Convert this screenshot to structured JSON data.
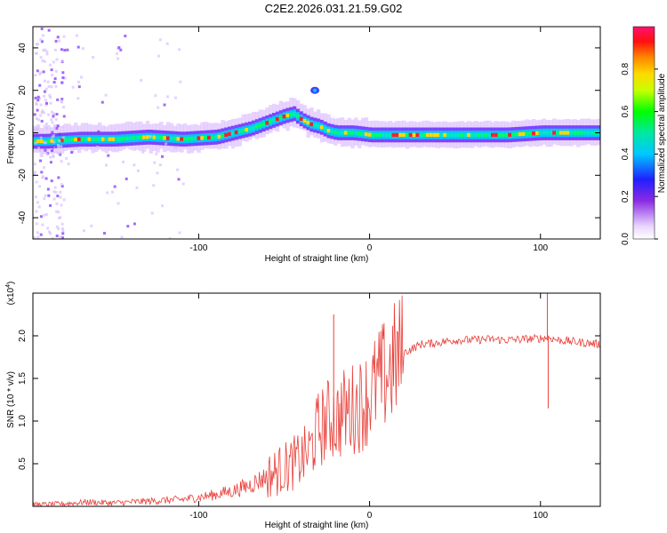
{
  "title": "C2E2.2026.031.21.59.G02",
  "colors": {
    "snr_line": "#e8403a",
    "axis": "#000000",
    "background": "#ffffff"
  },
  "chart_data": [
    {
      "type": "heatmap",
      "xlabel": "Height of straight line (km)",
      "ylabel": "Frequency (Hz)",
      "xlim": [
        -197,
        135
      ],
      "ylim": [
        -50,
        50
      ],
      "x_ticks": [
        -100,
        0,
        100
      ],
      "y_ticks": [
        -40,
        -20,
        0,
        20,
        40
      ],
      "x_tick_labels": [
        "-100",
        "0",
        "100"
      ],
      "y_tick_labels": [
        "-40",
        "-20",
        "0",
        "20",
        "40"
      ],
      "colorbar": {
        "label": "Normalized spectral amplitude",
        "range": [
          0,
          1
        ],
        "ticks": [
          0.0,
          0.2,
          0.4,
          0.6,
          0.8
        ],
        "tick_labels": [
          "0.0",
          "0.2",
          "0.4",
          "0.6",
          "0.8"
        ]
      },
      "trace_ridge": {
        "x": [
          -190,
          -170,
          -150,
          -130,
          -110,
          -90,
          -80,
          -70,
          -60,
          -50,
          -45,
          -40,
          -35,
          -30,
          -25,
          -20,
          -10,
          0,
          10,
          20,
          40,
          60,
          80,
          100,
          135
        ],
        "y": [
          -4,
          -3,
          -3,
          -2,
          -3,
          -2,
          0,
          2,
          5,
          8,
          9,
          6,
          4,
          3,
          1,
          0,
          0,
          -1,
          -1,
          -1,
          -1,
          -1,
          -1,
          0,
          0
        ]
      }
    },
    {
      "type": "line",
      "xlabel": "Height of straight line (km)",
      "ylabel": "SNR (10 * v/v)",
      "y_multiplier": "(x10",
      "y_multiplier_exp": "4",
      "y_multiplier_close": ")",
      "xlim": [
        -197,
        135
      ],
      "ylim": [
        0,
        2.5
      ],
      "x_ticks": [
        -100,
        0,
        100
      ],
      "y_ticks": [
        0.5,
        1.0,
        1.5,
        2.0
      ],
      "x_tick_labels": [
        "-100",
        "0",
        "100"
      ],
      "y_tick_labels": [
        "0.5",
        "1.0",
        "1.5",
        "2.0"
      ],
      "series": [
        {
          "name": "SNR",
          "x": [
            -197,
            -180,
            -165,
            -150,
            -130,
            -110,
            -95,
            -80,
            -70,
            -60,
            -50,
            -40,
            -35,
            -30,
            -25,
            -22,
            -20,
            -15,
            -10,
            -5,
            0,
            5,
            10,
            15,
            20,
            25,
            30,
            40,
            50,
            60,
            70,
            80,
            90,
            100,
            105,
            110,
            120,
            135
          ],
          "y": [
            0.02,
            0.03,
            0.05,
            0.04,
            0.06,
            0.08,
            0.12,
            0.18,
            0.25,
            0.35,
            0.45,
            0.55,
            0.65,
            0.9,
            1.0,
            1.05,
            1.0,
            1.1,
            1.15,
            1.2,
            1.3,
            1.45,
            1.55,
            1.7,
            1.8,
            1.85,
            1.9,
            1.92,
            1.95,
            1.95,
            1.96,
            1.95,
            1.96,
            1.97,
            1.98,
            1.95,
            1.93,
            1.9
          ]
        }
      ],
      "spikes": [
        {
          "x": -21,
          "y": 2.25
        },
        {
          "x": 104,
          "y": 2.5
        },
        {
          "x": 104.5,
          "y": 1.15
        }
      ]
    }
  ]
}
